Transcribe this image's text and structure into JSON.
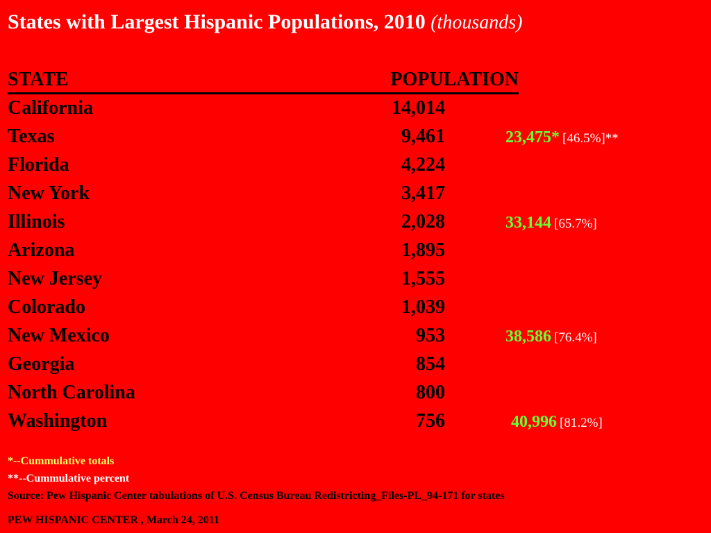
{
  "title": {
    "main": "States with Largest Hispanic Populations, 2010",
    "units": "(thousands)"
  },
  "header": {
    "state": "STATE",
    "population": "POPULATION"
  },
  "rows": [
    {
      "state": "California",
      "population": "14,014"
    },
    {
      "state": "Texas",
      "population": "9,461",
      "cum_total": "23,475*",
      "cum_pct": "[46.5%]**"
    },
    {
      "state": "Florida",
      "population": "4,224"
    },
    {
      "state": "New York",
      "population": "3,417"
    },
    {
      "state": "Illinois",
      "population": "2,028",
      "cum_total": "33,144",
      "cum_pct": "[65.7%]"
    },
    {
      "state": "Arizona",
      "population": "1,895"
    },
    {
      "state": "New Jersey",
      "population": "1,555"
    },
    {
      "state": "Colorado",
      "population": "1,039"
    },
    {
      "state": "New Mexico",
      "population": "953",
      "cum_total": "38,586",
      "cum_pct": "[76.4%]"
    },
    {
      "state": "Georgia",
      "population": "854"
    },
    {
      "state": "North Carolina",
      "population": "800"
    },
    {
      "state": "Washington",
      "population": "756",
      "cum_total": "40,996",
      "cum_pct": "[81.2%]"
    }
  ],
  "notes": {
    "cumulative_totals": "*--Cummulative totals",
    "cumulative_percent": "**--Cummulative percent",
    "source": "Source: Pew Hispanic Center tabulations of U.S. Census Bureau Redistricting_Files-PL_94-171 for states",
    "credit": "PEW HISPANIC CENTER , March 24, 2011"
  },
  "colors": {
    "background": "#ff0000",
    "title": "#ffffff",
    "cumulative_total": "#66ff33",
    "cumulative_percent": "#ffffff",
    "note_totals": "#ffff66",
    "note_percent": "#ffffff"
  }
}
